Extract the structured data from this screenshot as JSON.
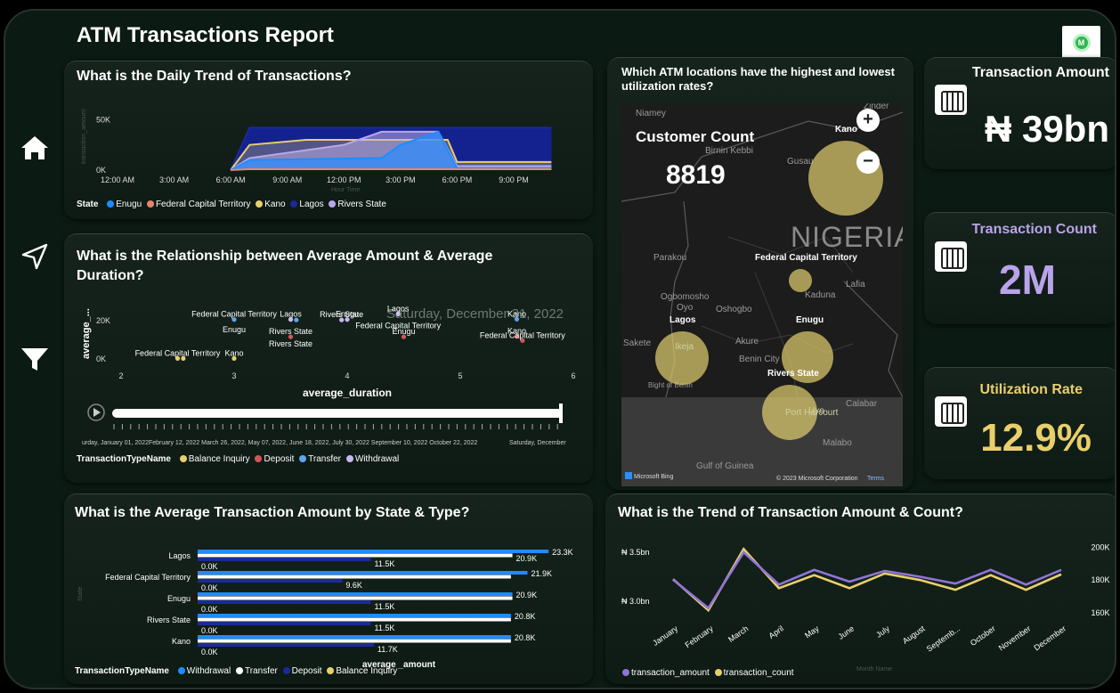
{
  "report": {
    "title": "ATM Transactions Report"
  },
  "nav": {
    "items": [
      "home-icon",
      "navigate-arrow-icon",
      "filter-icon"
    ]
  },
  "colors": {
    "enugu": "#1e8cff",
    "fct": "#e8856a",
    "kano": "#e8cf6b",
    "lagos": "#1a2a9a",
    "rivers": "#b8a8e8",
    "balance_inquiry": "#e8cf6b",
    "deposit": "#d0565a",
    "transfer": "#5aa8f0",
    "withdrawal": "#c8b8f0",
    "amount_line": "#8f74d8",
    "count_line": "#e8cf6b",
    "kpi_amount": "#ffffff",
    "kpi_count": "#b9a3ea",
    "kpi_rate": "#e8cf6b"
  },
  "daily": {
    "title": "What is the Daily Trend of Transactions?",
    "ylabel_faint": "transaction_amount",
    "xlabel_faint": "Hour Time",
    "legend_title": "State",
    "legend": [
      "Enugu",
      "Federal Capital Territory",
      "Kano",
      "Lagos",
      "Rivers State"
    ]
  },
  "scatter": {
    "title_line1": "What is the Relationship between Average Amount & Average",
    "title_line2": "Duration?",
    "xlabel": "average_duration",
    "ylabel": "average_...",
    "watermark": "Saturday, December 31, 2022",
    "legend_title": "TransactionTypeName",
    "legend": [
      "Balance Inquiry",
      "Deposit",
      "Transfer",
      "Withdrawal"
    ],
    "timeline_text": "urday, January 01, 2022February 12, 2022 March 26, 2022, May 07, 2022, June 18, 2022, July 30, 2022 September 10, 2022 October 22, 2022",
    "timeline_end": "Saturday, December"
  },
  "map": {
    "title_line1": "Which ATM locations have the highest and lowest",
    "title_line2": "utilization rates?",
    "customer_count_label": "Customer Count",
    "customer_count_value": "8819",
    "country": "NIGERIA",
    "labels": {
      "kano": "Kano",
      "fct": "Federal Capital Territory",
      "lagos": "Lagos",
      "enugu": "Enugu",
      "rivers": "Rivers State"
    },
    "places": [
      "Niamey",
      "Zinder",
      "Birnin Kebbi",
      "Gusau",
      "Kaduna",
      "Kano",
      "Parakou",
      "Lafia",
      "Ogbomosho",
      "Oyo",
      "Oshogbo",
      "Ikeja",
      "Akure",
      "Benin City",
      "Sakete",
      "Port Harcourt",
      "Uyo",
      "Calabar",
      "Malabo",
      "Gulf of Guinea",
      "Bight of Benin"
    ],
    "bing": "Microsoft Bing",
    "copyright": "© 2023 Microsoft Corporation",
    "terms": "Terms"
  },
  "kpis": [
    {
      "label": "Transaction Amount",
      "value": "₦ 39bn"
    },
    {
      "label": "Transaction Count",
      "value": "2M"
    },
    {
      "label": "Utilization Rate",
      "value": "12.9%"
    }
  ],
  "bars": {
    "title": "What is the Average Transaction Amount by State & Type?",
    "xlabel": "average _amount",
    "ylabel_faint": "State",
    "legend_title": "TransactionTypeName",
    "legend": [
      "Withdrawal",
      "Transfer",
      "Deposit",
      "Balance Inquiry"
    ]
  },
  "trend": {
    "title": "What is the Trend of Transaction Amount & Count?",
    "xlabel_faint": "Month Name",
    "legend": [
      "transaction_amount",
      "transaction_count"
    ]
  },
  "chart_data": [
    {
      "type": "area",
      "title": "What is the Daily Trend of Transactions?",
      "x": [
        "12:00 AM",
        "3:00 AM",
        "6:00 AM",
        "9:00 AM",
        "12:00 PM",
        "3:00 PM",
        "6:00 PM",
        "9:00 PM"
      ],
      "x_hours": [
        0,
        3,
        6,
        9,
        12,
        15,
        18,
        21
      ],
      "y_ticks": [
        "0K",
        "50K"
      ],
      "ylim": [
        0,
        60000
      ],
      "series": [
        {
          "name": "Lagos",
          "points": [
            [
              6,
              0
            ],
            [
              7,
              42000
            ],
            [
              21,
              42000
            ],
            [
              23,
              42000
            ]
          ]
        },
        {
          "name": "Kano",
          "points": [
            [
              6,
              0
            ],
            [
              7,
              25000
            ],
            [
              10,
              30000
            ],
            [
              15,
              30000
            ],
            [
              17.5,
              30000
            ],
            [
              18,
              8000
            ],
            [
              23,
              8000
            ]
          ]
        },
        {
          "name": "Rivers State",
          "points": [
            [
              6,
              0
            ],
            [
              7,
              12000
            ],
            [
              12,
              25000
            ],
            [
              14,
              38000
            ],
            [
              17,
              38000
            ],
            [
              18,
              4000
            ],
            [
              23,
              4000
            ]
          ]
        },
        {
          "name": "Enugu",
          "points": [
            [
              6,
              0
            ],
            [
              7,
              10000
            ],
            [
              14,
              12000
            ],
            [
              15,
              25000
            ],
            [
              17,
              38000
            ],
            [
              18,
              2000
            ],
            [
              23,
              2000
            ]
          ]
        },
        {
          "name": "Federal Capital Territory",
          "points": [
            [
              6,
              0
            ],
            [
              7,
              1000
            ],
            [
              23,
              1000
            ]
          ]
        }
      ]
    },
    {
      "type": "scatter",
      "title": "What is the Relationship between Average Amount & Average Duration?",
      "xlabel": "average_duration",
      "ylabel": "average_...",
      "xlim": [
        2,
        6
      ],
      "ylim": [
        0,
        25000
      ],
      "x_ticks": [
        2,
        3,
        4,
        5,
        6
      ],
      "y_ticks": [
        "0K",
        "20K"
      ],
      "points": [
        {
          "type": "Balance Inquiry",
          "x": 2.5,
          "y": 300,
          "label": "Federal Capital Territory"
        },
        {
          "type": "Balance Inquiry",
          "x": 2.55,
          "y": 300,
          "label": ""
        },
        {
          "type": "Balance Inquiry",
          "x": 3.0,
          "y": 300,
          "label": "Kano"
        },
        {
          "type": "Transfer",
          "x": 3.0,
          "y": 20500,
          "label": "Federal Capital Territory"
        },
        {
          "type": "Withdrawal",
          "x": 3.5,
          "y": 20500,
          "label": "Lagos"
        },
        {
          "type": "Transfer",
          "x": 3.55,
          "y": 20300,
          "label": ""
        },
        {
          "type": "Withdrawal",
          "x": 3.95,
          "y": 20300,
          "label": "Rivers State"
        },
        {
          "type": "Withdrawal",
          "x": 4.0,
          "y": 20500,
          "label": "Enugu"
        },
        {
          "type": "Withdrawal",
          "x": 4.45,
          "y": 23300,
          "label": "Lagos"
        },
        {
          "type": "Deposit",
          "x": 3.5,
          "y": 11500,
          "label": "Rivers State"
        },
        {
          "type": "Deposit",
          "x": 4.5,
          "y": 11500,
          "label": "Enugu"
        },
        {
          "type": "Transfer",
          "x": 5.5,
          "y": 20700,
          "label": "Kano"
        },
        {
          "type": "Deposit",
          "x": 5.5,
          "y": 11700,
          "label": "Kano"
        },
        {
          "type": "Deposit",
          "x": 5.55,
          "y": 9600,
          "label": "Federal Capital Territory"
        }
      ],
      "extra_labels": [
        {
          "text": "Enugu",
          "x": 3.0,
          "y": 14000
        },
        {
          "text": "Rivers State",
          "x": 3.5,
          "y": 6500
        },
        {
          "text": "Federal Capital Territory",
          "x": 4.45,
          "y": 16000
        }
      ]
    },
    {
      "type": "bar",
      "orientation": "horizontal",
      "title": "What is the Average Transaction Amount by State & Type?",
      "xlabel": "average _amount",
      "categories": [
        "Lagos",
        "Federal Capital Territory",
        "Enugu",
        "Rivers State",
        "Kano"
      ],
      "xlim": [
        0,
        24000
      ],
      "series": [
        {
          "name": "Withdrawal",
          "values": [
            23300,
            21900,
            20900,
            20800,
            20800
          ],
          "labels": [
            "23.3K",
            "21.9K",
            "20.9K",
            "20.8K",
            "20.8K"
          ]
        },
        {
          "name": "Transfer",
          "values": [
            20900,
            20800,
            20900,
            20800,
            20800
          ],
          "labels": [
            "20.9K",
            "",
            "",
            "",
            ""
          ]
        },
        {
          "name": "Deposit",
          "values": [
            11500,
            9600,
            11500,
            11500,
            11700
          ],
          "labels": [
            "11.5K",
            "9.6K",
            "11.5K",
            "11.5K",
            "11.7K"
          ]
        },
        {
          "name": "Balance Inquiry",
          "values": [
            0,
            0,
            0,
            0,
            0
          ],
          "labels": [
            "0.0K",
            "0.0K",
            "0.0K",
            "0.0K",
            "0.0K"
          ]
        }
      ]
    },
    {
      "type": "line",
      "title": "What is the Trend of Transaction Amount & Count?",
      "categories": [
        "January",
        "February",
        "March",
        "April",
        "May",
        "June",
        "July",
        "August",
        "Septemb...",
        "October",
        "November",
        "December"
      ],
      "y_left_ticks": [
        "₦ 3.0bn",
        "₦ 3.5bn"
      ],
      "y_left_tick_values": [
        3.0,
        3.5
      ],
      "y_right_ticks": [
        "160K",
        "180K",
        "200K"
      ],
      "y_right_tick_values": [
        160000,
        180000,
        200000
      ],
      "series": [
        {
          "name": "transaction_amount",
          "axis": "left",
          "values": [
            3.22,
            2.93,
            3.5,
            3.17,
            3.32,
            3.2,
            3.31,
            3.25,
            3.18,
            3.32,
            3.17,
            3.32
          ]
        },
        {
          "name": "transaction_count",
          "axis": "right",
          "values": [
            180500,
            161500,
            199000,
            175000,
            183000,
            175000,
            184000,
            180000,
            174000,
            183000,
            174000,
            183500
          ]
        }
      ],
      "y_left_lim": [
        2.8,
        3.6
      ],
      "y_right_lim": [
        155000,
        203000
      ]
    }
  ]
}
